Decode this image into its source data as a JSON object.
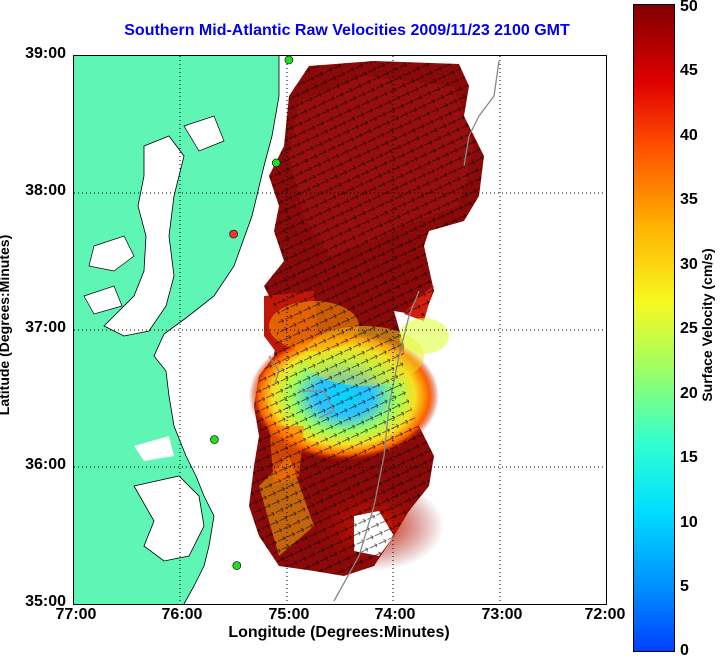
{
  "title": "Southern Mid-Atlantic Raw Velocities 2009/11/23 2100 GMT",
  "map": {
    "xlabel": "Longitude (Degrees:Minutes)",
    "ylabel": "Latitude (Degrees:Minutes)",
    "lon_ticks": [
      "77:00",
      "76:00",
      "75:00",
      "74:00",
      "73:00",
      "72:00"
    ],
    "lat_ticks": [
      "39:00",
      "38:00",
      "37:00",
      "36:00",
      "35:00"
    ],
    "lon_range": [
      -77,
      -72
    ],
    "lat_range": [
      35,
      39
    ],
    "grid": "dotted",
    "land_color": "#5ff5b4",
    "station_color": "#22dd22",
    "stations": [
      {
        "lon": -74.98,
        "lat": 39.0,
        "color": "#22dd22"
      },
      {
        "lon": -75.1,
        "lat": 38.22,
        "color": "#22dd22"
      },
      {
        "lon": -75.5,
        "lat": 37.7,
        "color": "#ff3030"
      },
      {
        "lon": -75.68,
        "lat": 36.2,
        "color": "#22dd22"
      },
      {
        "lon": -75.47,
        "lat": 35.28,
        "color": "#22dd22"
      }
    ]
  },
  "colorbar": {
    "label": "Surface Velocity (cm/s)",
    "ticks": [
      "50",
      "45",
      "40",
      "35",
      "30",
      "25",
      "20",
      "15",
      "10",
      "5",
      "0"
    ],
    "min": 0,
    "max": 50
  }
}
